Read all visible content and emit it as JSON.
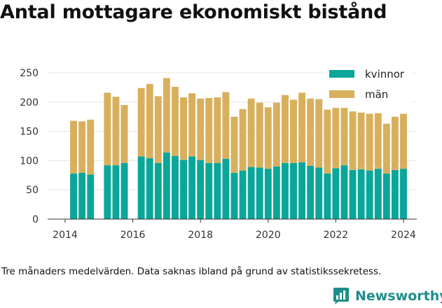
{
  "chart_data": {
    "type": "bar",
    "stacked": true,
    "title": "Antal mottagare ekonomiskt bistånd",
    "note": "Tre månaders medelvärden. Data saknas ibland på grund av statistikssekretess.",
    "brand": "Newsworthy",
    "xlabel": "",
    "ylabel": "",
    "ylim": [
      0,
      250
    ],
    "yticks": [
      0,
      50,
      100,
      150,
      200,
      250
    ],
    "xticks": [
      "2014",
      "2016",
      "2018",
      "2020",
      "2022",
      "2024"
    ],
    "xrange": [
      2013.5,
      2024.4
    ],
    "grid": true,
    "legend_position": "top-right",
    "colors": {
      "kvinnor": "#0aa69a",
      "män": "#d8b05d"
    },
    "x": [
      2014.25,
      2014.5,
      2014.75,
      2015.25,
      2015.5,
      2015.75,
      2016.25,
      2016.5,
      2016.75,
      2017.0,
      2017.25,
      2017.5,
      2017.75,
      2018.0,
      2018.25,
      2018.5,
      2018.75,
      2019.0,
      2019.25,
      2019.5,
      2019.75,
      2020.0,
      2020.25,
      2020.5,
      2020.75,
      2021.0,
      2021.25,
      2021.5,
      2021.75,
      2022.0,
      2022.25,
      2022.5,
      2022.75,
      2023.0,
      2023.25,
      2023.5,
      2023.75,
      2024.0
    ],
    "series": [
      {
        "name": "kvinnor",
        "values": [
          78,
          79,
          76,
          92,
          92,
          96,
          107,
          104,
          96,
          114,
          108,
          101,
          107,
          101,
          96,
          96,
          103,
          79,
          83,
          89,
          88,
          86,
          90,
          96,
          96,
          97,
          91,
          88,
          78,
          87,
          92,
          84,
          85,
          83,
          86,
          78,
          84,
          86
        ]
      },
      {
        "name": "män",
        "values": [
          90,
          88,
          94,
          124,
          117,
          99,
          117,
          127,
          114,
          127,
          118,
          107,
          108,
          105,
          111,
          112,
          114,
          96,
          105,
          117,
          111,
          105,
          109,
          116,
          108,
          119,
          115,
          117,
          109,
          103,
          98,
          100,
          97,
          97,
          95,
          85,
          91,
          94
        ]
      }
    ]
  }
}
